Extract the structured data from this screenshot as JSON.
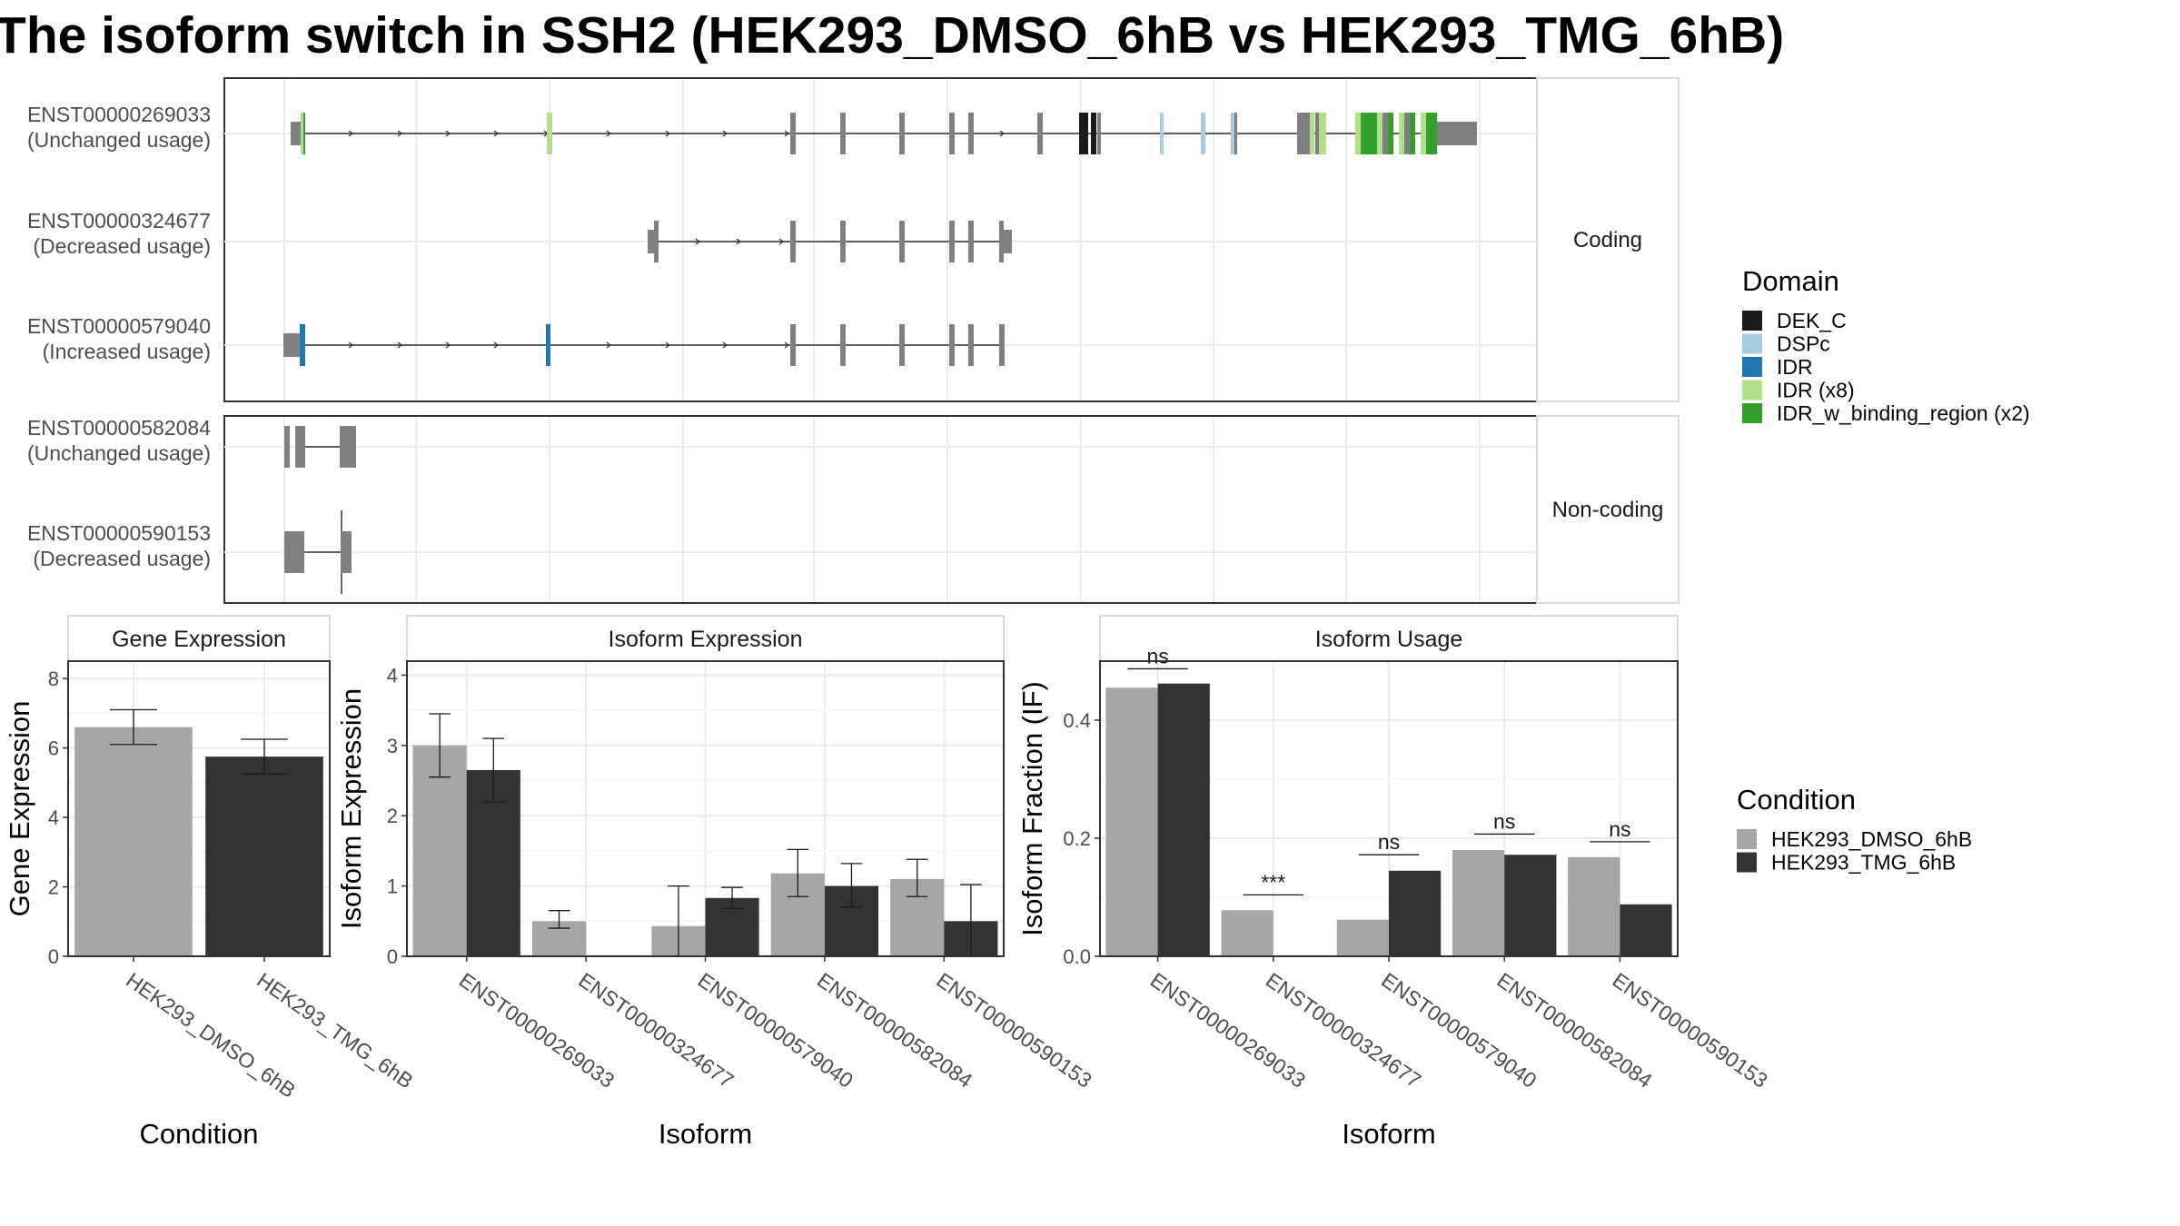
{
  "title": "The isoform switch in SSH2 (HEK293_DMSO_6hB vs HEK293_TMG_6hB)",
  "transcript_panel": {
    "groups": [
      {
        "label": "Coding",
        "transcripts": [
          {
            "id": "ENST00000269033",
            "usage": "(Unchanged usage)"
          },
          {
            "id": "ENST00000324677",
            "usage": "(Decreased usage)"
          },
          {
            "id": "ENST00000579040",
            "usage": "(Increased usage)"
          }
        ]
      },
      {
        "label": "Non-coding",
        "transcripts": [
          {
            "id": "ENST00000582084",
            "usage": "(Unchanged usage)"
          },
          {
            "id": "ENST00000590153",
            "usage": "(Decreased usage)"
          }
        ]
      }
    ]
  },
  "domain_legend": {
    "title": "Domain",
    "items": [
      {
        "label": "DEK_C",
        "color": "#1a1a1a"
      },
      {
        "label": "DSPc",
        "color": "#a6cee3"
      },
      {
        "label": "IDR",
        "color": "#1f78b4"
      },
      {
        "label": "IDR (x8)",
        "color": "#b2df8a"
      },
      {
        "label": "IDR_w_binding_region (x2)",
        "color": "#33a02c"
      }
    ]
  },
  "condition_legend": {
    "title": "Condition",
    "items": [
      {
        "label": "HEK293_DMSO_6hB",
        "color": "#a6a6a6"
      },
      {
        "label": "HEK293_TMG_6hB",
        "color": "#333333"
      }
    ]
  },
  "chart_data": [
    {
      "type": "bar",
      "title": "Gene Expression",
      "xlabel": "Condition",
      "ylabel": "Gene Expression",
      "ylim": [
        0,
        8.5
      ],
      "yticks": [
        0,
        2,
        4,
        6,
        8
      ],
      "categories": [
        "HEK293_DMSO_6hB",
        "HEK293_TMG_6hB"
      ],
      "values": [
        6.6,
        5.75
      ],
      "error_low": [
        6.1,
        5.25
      ],
      "error_high": [
        7.1,
        6.25
      ],
      "colors": [
        "#a6a6a6",
        "#333333"
      ],
      "grid": true
    },
    {
      "type": "bar",
      "title": "Isoform Expression",
      "xlabel": "Isoform",
      "ylabel": "Isoform Expression",
      "ylim": [
        0,
        4.2
      ],
      "yticks": [
        0,
        1,
        2,
        3,
        4
      ],
      "categories": [
        "ENST00000269033",
        "ENST00000324677",
        "ENST00000579040",
        "ENST00000582084",
        "ENST00000590153"
      ],
      "series": [
        {
          "name": "HEK293_DMSO_6hB",
          "color": "#a6a6a6",
          "values": [
            3.0,
            0.5,
            0.43,
            1.18,
            1.1
          ],
          "error_low": [
            2.55,
            0.4,
            0.0,
            0.85,
            0.85
          ],
          "error_high": [
            3.45,
            0.65,
            1.0,
            1.52,
            1.38
          ]
        },
        {
          "name": "HEK293_TMG_6hB",
          "color": "#333333",
          "values": [
            2.65,
            0.0,
            0.83,
            1.0,
            0.5
          ],
          "error_low": [
            2.2,
            0.0,
            0.68,
            0.7,
            0.0
          ],
          "error_high": [
            3.1,
            0.0,
            0.98,
            1.32,
            1.02
          ]
        }
      ],
      "grid": true
    },
    {
      "type": "bar",
      "title": "Isoform Usage",
      "xlabel": "Isoform",
      "ylabel": "Isoform Fraction (IF)",
      "ylim": [
        0,
        0.5
      ],
      "yticks": [
        0.0,
        0.2,
        0.4
      ],
      "ytick_labels": [
        "0.0",
        "0.2",
        "0.4"
      ],
      "categories": [
        "ENST00000269033",
        "ENST00000324677",
        "ENST00000579040",
        "ENST00000582084",
        "ENST00000590153"
      ],
      "series": [
        {
          "name": "HEK293_DMSO_6hB",
          "color": "#a6a6a6",
          "values": [
            0.455,
            0.078,
            0.062,
            0.18,
            0.168
          ]
        },
        {
          "name": "HEK293_TMG_6hB",
          "color": "#333333",
          "values": [
            0.462,
            0.0,
            0.145,
            0.172,
            0.088
          ]
        }
      ],
      "significance": [
        "ns",
        "***",
        "ns",
        "ns",
        "ns"
      ],
      "significance_level": [
        0.487,
        0.104,
        0.172,
        0.207,
        0.194
      ],
      "grid": true
    }
  ]
}
